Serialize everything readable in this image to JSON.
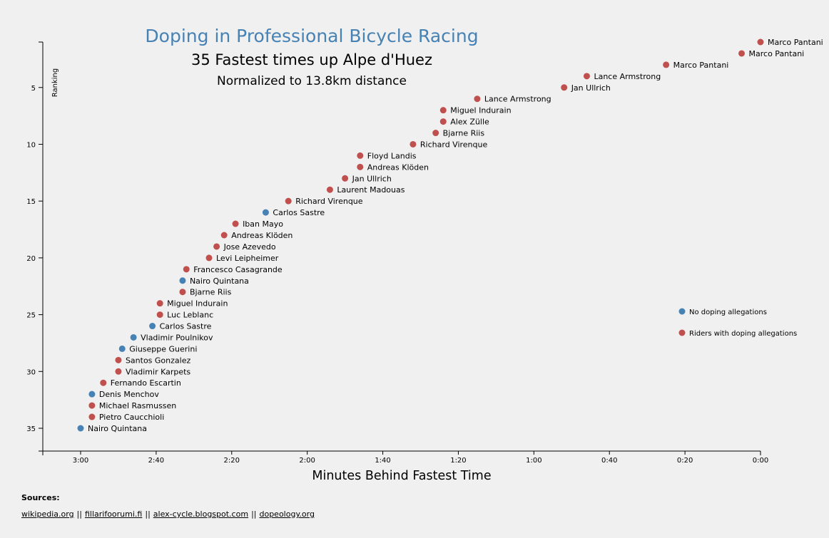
{
  "chart_data": {
    "type": "scatter",
    "title": "Doping in Professional Bicycle Racing",
    "subtitle": "35 Fastest times up Alpe d'Huez",
    "subtitle2": "Normalized to 13.8km distance",
    "xlabel": "Minutes Behind Fastest Time",
    "ylabel": "Ranking",
    "x_ticks": [
      "3:00",
      "2:40",
      "2:20",
      "2:00",
      "1:40",
      "1:20",
      "1:00",
      "0:40",
      "0:20",
      "0:00"
    ],
    "y_ticks": [
      "5",
      "10",
      "15",
      "20",
      "25",
      "30",
      "35"
    ],
    "colors": {
      "clean": "#4682b4",
      "doping": "#c0504d"
    },
    "legend": [
      {
        "label": "No doping allegations",
        "key": "clean"
      },
      {
        "label": "Riders with doping allegations",
        "key": "doping"
      }
    ],
    "points": [
      {
        "place": 1,
        "seconds_behind": 0,
        "name": "Marco Pantani",
        "doping": true
      },
      {
        "place": 2,
        "seconds_behind": 5,
        "name": "Marco Pantani",
        "doping": true
      },
      {
        "place": 3,
        "seconds_behind": 25,
        "name": "Marco Pantani",
        "doping": true
      },
      {
        "place": 4,
        "seconds_behind": 46,
        "name": "Lance Armstrong",
        "doping": true
      },
      {
        "place": 5,
        "seconds_behind": 52,
        "name": "Jan Ullrich",
        "doping": true
      },
      {
        "place": 6,
        "seconds_behind": 75,
        "name": "Lance Armstrong",
        "doping": true
      },
      {
        "place": 7,
        "seconds_behind": 84,
        "name": "Miguel Indurain",
        "doping": true
      },
      {
        "place": 8,
        "seconds_behind": 84,
        "name": "Alex Zülle",
        "doping": true
      },
      {
        "place": 9,
        "seconds_behind": 86,
        "name": "Bjarne Riis",
        "doping": true
      },
      {
        "place": 10,
        "seconds_behind": 92,
        "name": "Richard Virenque",
        "doping": true
      },
      {
        "place": 11,
        "seconds_behind": 106,
        "name": "Floyd Landis",
        "doping": true
      },
      {
        "place": 12,
        "seconds_behind": 106,
        "name": "Andreas Klöden",
        "doping": true
      },
      {
        "place": 13,
        "seconds_behind": 110,
        "name": "Jan Ullrich",
        "doping": true
      },
      {
        "place": 14,
        "seconds_behind": 114,
        "name": "Laurent Madouas",
        "doping": true
      },
      {
        "place": 15,
        "seconds_behind": 125,
        "name": "Richard Virenque",
        "doping": true
      },
      {
        "place": 16,
        "seconds_behind": 131,
        "name": "Carlos Sastre",
        "doping": false
      },
      {
        "place": 17,
        "seconds_behind": 139,
        "name": "Iban Mayo",
        "doping": true
      },
      {
        "place": 18,
        "seconds_behind": 142,
        "name": "Andreas Klöden",
        "doping": true
      },
      {
        "place": 19,
        "seconds_behind": 144,
        "name": "Jose Azevedo",
        "doping": true
      },
      {
        "place": 20,
        "seconds_behind": 146,
        "name": "Levi Leipheimer",
        "doping": true
      },
      {
        "place": 21,
        "seconds_behind": 152,
        "name": "Francesco Casagrande",
        "doping": true
      },
      {
        "place": 22,
        "seconds_behind": 153,
        "name": "Nairo Quintana",
        "doping": false
      },
      {
        "place": 23,
        "seconds_behind": 153,
        "name": "Bjarne Riis",
        "doping": true
      },
      {
        "place": 24,
        "seconds_behind": 159,
        "name": "Miguel Indurain",
        "doping": true
      },
      {
        "place": 25,
        "seconds_behind": 159,
        "name": "Luc Leblanc",
        "doping": true
      },
      {
        "place": 26,
        "seconds_behind": 161,
        "name": "Carlos Sastre",
        "doping": false
      },
      {
        "place": 27,
        "seconds_behind": 166,
        "name": "Vladimir Poulnikov",
        "doping": false
      },
      {
        "place": 28,
        "seconds_behind": 169,
        "name": "Giuseppe Guerini",
        "doping": false
      },
      {
        "place": 29,
        "seconds_behind": 170,
        "name": "Santos Gonzalez",
        "doping": true
      },
      {
        "place": 30,
        "seconds_behind": 170,
        "name": "Vladimir Karpets",
        "doping": true
      },
      {
        "place": 31,
        "seconds_behind": 174,
        "name": "Fernando Escartin",
        "doping": true
      },
      {
        "place": 32,
        "seconds_behind": 177,
        "name": "Denis Menchov",
        "doping": false
      },
      {
        "place": 33,
        "seconds_behind": 177,
        "name": "Michael Rasmussen",
        "doping": true
      },
      {
        "place": 34,
        "seconds_behind": 177,
        "name": "Pietro Caucchioli",
        "doping": true
      },
      {
        "place": 35,
        "seconds_behind": 180,
        "name": "Nairo Quintana",
        "doping": false
      }
    ]
  },
  "sources": {
    "header": "Sources:",
    "links": [
      "wikipedia.org",
      "fillarifoorumi.fi",
      "alex-cycle.blogspot.com",
      "dopeology.org"
    ],
    "separator": "||"
  }
}
